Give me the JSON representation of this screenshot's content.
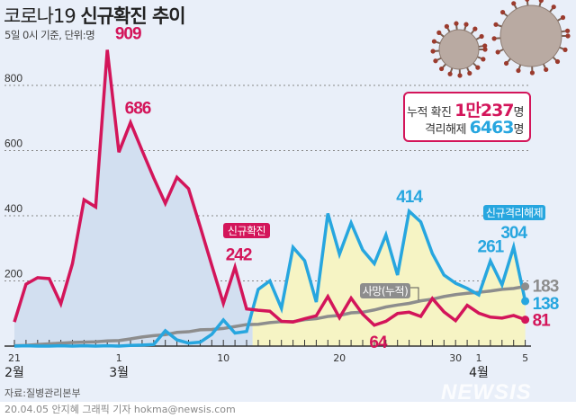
{
  "title_plain": "코로나19 ",
  "title_bold": "신규확진 추이",
  "subtitle": "5일 0시 기준, 단위:명",
  "summary": {
    "cumulative_label": "누적 확진 ",
    "cumulative_value": "1만237",
    "released_label": "격리해제 ",
    "released_value": "6463",
    "unit": "명"
  },
  "source": "자료:질병관리본부",
  "footer": "20.04.05 안지혜 그래픽 기자 hokma@newsis.com",
  "watermark": "NEWSIS",
  "colors": {
    "confirmed": "#d3155a",
    "released": "#27a6df",
    "deaths": "#8d8d8d",
    "background": "#e9eff9",
    "fill_confirmed": "#d2dff0",
    "fill_released": "#f6f4c4"
  },
  "chart_data": {
    "type": "line",
    "ylim": [
      0,
      900
    ],
    "yticks": [
      "200",
      "400",
      "600",
      "800"
    ],
    "ytick_values": [
      200,
      400,
      600,
      800
    ],
    "grid": true,
    "x": [
      "2/21",
      "2/22",
      "2/23",
      "2/24",
      "2/25",
      "2/26",
      "2/27",
      "2/28",
      "2/29",
      "3/1",
      "3/2",
      "3/3",
      "3/4",
      "3/5",
      "3/6",
      "3/7",
      "3/8",
      "3/9",
      "3/10",
      "3/11",
      "3/12",
      "3/13",
      "3/14",
      "3/15",
      "3/16",
      "3/17",
      "3/18",
      "3/19",
      "3/20",
      "3/21",
      "3/22",
      "3/23",
      "3/24",
      "3/25",
      "3/26",
      "3/27",
      "3/28",
      "3/29",
      "3/30",
      "3/31",
      "4/1",
      "4/2",
      "4/3",
      "4/4",
      "4/5"
    ],
    "xtick_labels": [
      {
        "index": 0,
        "label": "21"
      },
      {
        "index": 9,
        "label": "1"
      },
      {
        "index": 18,
        "label": "10"
      },
      {
        "index": 28,
        "label": "20"
      },
      {
        "index": 38,
        "label": "30"
      },
      {
        "index": 40,
        "label": "1"
      },
      {
        "index": 44,
        "label": "5"
      }
    ],
    "month_labels": [
      {
        "index": 0,
        "label": "2월"
      },
      {
        "index": 9,
        "label": "3월"
      },
      {
        "index": 40,
        "label": "4월"
      }
    ],
    "series": [
      {
        "name": "신규확진",
        "key": "confirmed",
        "values": [
          74,
          190,
          210,
          207,
          130,
          253,
          449,
          427,
          909,
          595,
          686,
          600,
          516,
          438,
          518,
          483,
          367,
          248,
          131,
          242,
          114,
          110,
          107,
          76,
          74,
          84,
          93,
          152,
          87,
          147,
          98,
          64,
          76,
          100,
          104,
          91,
          146,
          105,
          78,
          125,
          101,
          89,
          86,
          94,
          81
        ]
      },
      {
        "name": "신규격리해제",
        "key": "released",
        "values": [
          0,
          1,
          0,
          0,
          1,
          0,
          1,
          0,
          1,
          0,
          2,
          3,
          5,
          47,
          19,
          9,
          12,
          36,
          80,
          40,
          45,
          174,
          200,
          116,
          303,
          262,
          135,
          407,
          282,
          378,
          295,
          253,
          341,
          218,
          414,
          381,
          284,
          218,
          193,
          177,
          157,
          261,
          188,
          304,
          138
        ]
      },
      {
        "name": "사망(누적)",
        "key": "deaths",
        "values": [
          1,
          2,
          5,
          7,
          9,
          11,
          12,
          13,
          16,
          17,
          22,
          28,
          32,
          35,
          42,
          44,
          50,
          51,
          54,
          60,
          66,
          67,
          72,
          75,
          75,
          81,
          84,
          91,
          94,
          102,
          104,
          111,
          120,
          126,
          131,
          139,
          144,
          152,
          158,
          162,
          165,
          169,
          174,
          177,
          183
        ]
      }
    ],
    "annotations": [
      {
        "series": "confirmed",
        "index": 8,
        "text": "909"
      },
      {
        "series": "confirmed",
        "index": 10,
        "text": "686"
      },
      {
        "series": "confirmed",
        "index": 19,
        "text": "242"
      },
      {
        "series": "confirmed",
        "index": 31,
        "text": "64"
      },
      {
        "series": "confirmed",
        "index": 44,
        "text": "81"
      },
      {
        "series": "released",
        "index": 34,
        "text": "414"
      },
      {
        "series": "released",
        "index": 41,
        "text": "261"
      },
      {
        "series": "released",
        "index": 43,
        "text": "304"
      },
      {
        "series": "released",
        "index": 44,
        "text": "138"
      },
      {
        "series": "deaths",
        "index": 44,
        "text": "183"
      }
    ],
    "legend_labels": {
      "confirmed": "신규확진",
      "released": "신규격리해제",
      "deaths": "사망(누적)"
    }
  }
}
